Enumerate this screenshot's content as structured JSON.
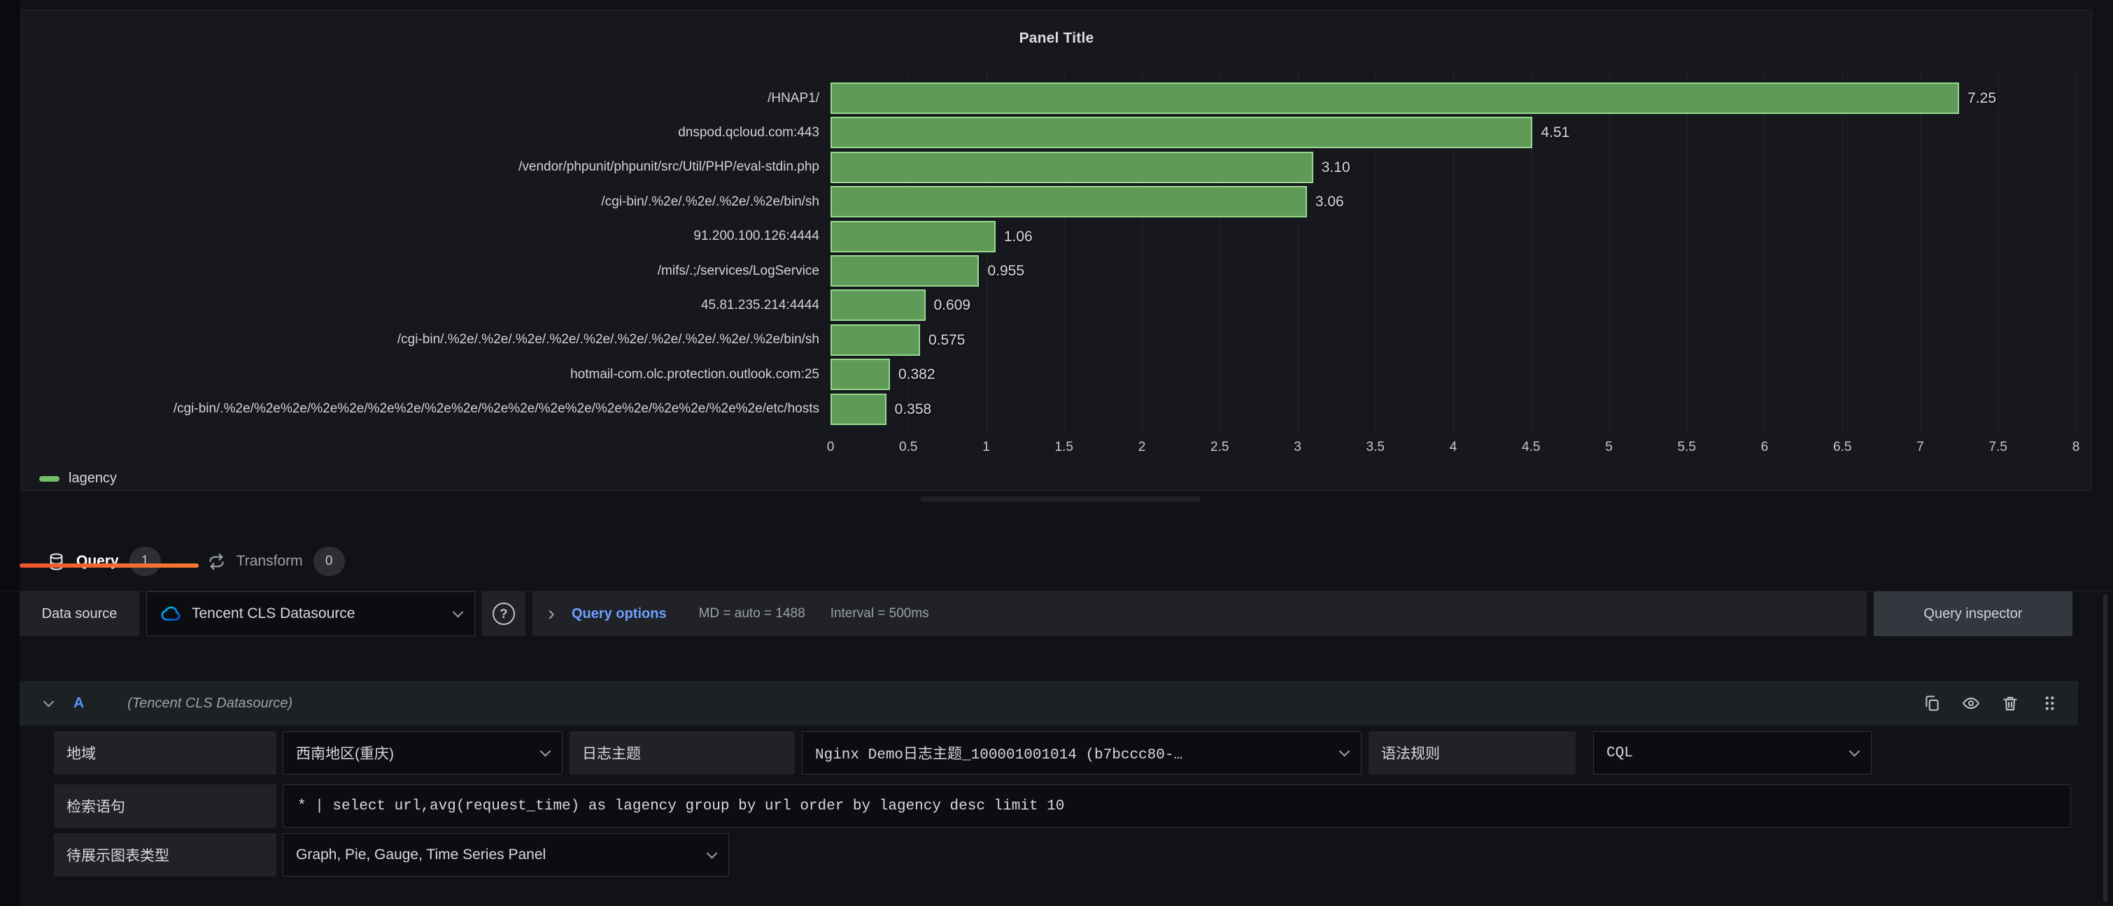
{
  "panel": {
    "title": "Panel Title",
    "legend_label": "lagency"
  },
  "chart_data": {
    "type": "bar",
    "orientation": "horizontal",
    "title": "Panel Title",
    "series_name": "lagency",
    "categories": [
      "/HNAP1/",
      "dnspod.qcloud.com:443",
      "/vendor/phpunit/phpunit/src/Util/PHP/eval-stdin.php",
      "/cgi-bin/.%2e/.%2e/.%2e/.%2e/bin/sh",
      "91.200.100.126:4444",
      "/mifs/.;/services/LogService",
      "45.81.235.214:4444",
      "/cgi-bin/.%2e/.%2e/.%2e/.%2e/.%2e/.%2e/.%2e/.%2e/.%2e/.%2e/bin/sh",
      "hotmail-com.olc.protection.outlook.com:25",
      "/cgi-bin/.%2e/%2e%2e/%2e%2e/%2e%2e/%2e%2e/%2e%2e/%2e%2e/%2e%2e/%2e%2e/%2e%2e/etc/hosts"
    ],
    "values": [
      7.25,
      4.51,
      3.1,
      3.06,
      1.06,
      0.955,
      0.609,
      0.575,
      0.382,
      0.358
    ],
    "value_labels": [
      "7.25",
      "4.51",
      "3.10",
      "3.06",
      "1.06",
      "0.955",
      "0.609",
      "0.575",
      "0.382",
      "0.358"
    ],
    "xlim": [
      0,
      8
    ],
    "x_ticks": [
      0,
      0.5,
      1,
      1.5,
      2,
      2.5,
      3,
      3.5,
      4,
      4.5,
      5,
      5.5,
      6,
      6.5,
      7,
      7.5,
      8
    ],
    "grid": true,
    "legend_position": "bottom-left",
    "bar_color": "#609a59",
    "bar_border_color": "#96d98d",
    "legend_color": "#73bf69"
  },
  "tabs": {
    "query": {
      "label": "Query",
      "count": "1"
    },
    "transform": {
      "label": "Transform",
      "count": "0"
    }
  },
  "toolbar": {
    "datasource_label": "Data source",
    "datasource_value": "Tencent CLS Datasource",
    "help_glyph": "?",
    "angle_glyph": "›",
    "query_options_label": "Query options",
    "md_text": "MD = auto = 1488",
    "interval_text": "Interval = 500ms",
    "query_inspector_label": "Query inspector"
  },
  "query_row": {
    "ref_id": "A",
    "datasource_hint": "(Tencent CLS Datasource)"
  },
  "fields": {
    "region_label": "地域",
    "region_value": "西南地区(重庆)",
    "topic_label": "日志主题",
    "topic_value": "Nginx Demo日志主题_100001001014 (b7bccc80-…",
    "syntax_label": "语法规则",
    "syntax_value": "CQL",
    "query_label": "检索语句",
    "query_value": "* | select url,avg(request_time) as lagency group by url order by lagency desc limit 10",
    "chart_type_label": "待展示图表类型",
    "chart_type_value": "Graph, Pie, Gauge, Time Series Panel"
  }
}
